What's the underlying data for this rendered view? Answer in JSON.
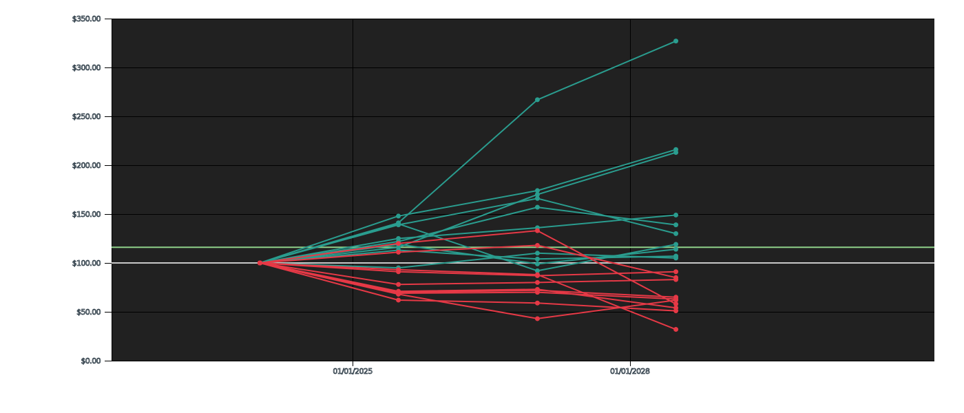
{
  "chart_data": {
    "type": "line",
    "title": "",
    "xlabel": "",
    "ylabel": "",
    "background_color": "#212121",
    "grid": true,
    "x_axis_type": "date",
    "xlim": [
      "2022-05-25",
      "2031-04-18"
    ],
    "ylim": [
      0,
      350
    ],
    "yticks": [
      0,
      50,
      100,
      150,
      200,
      250,
      300,
      350
    ],
    "ytick_labels": [
      "$0.00",
      "$50.00",
      "$100.00",
      "$150.00",
      "$200.00",
      "$250.00",
      "$300.00",
      "$350.00"
    ],
    "xticks": [
      "2025-01-01",
      "2028-01-01"
    ],
    "xtick_labels": [
      "01/01/2025",
      "01/01/2028"
    ],
    "x": [
      "2024-01-01",
      "2025-07-01",
      "2027-01-01",
      "2028-07-01"
    ],
    "reference_lines": [
      {
        "y": 100,
        "color": "#c8c8c8"
      },
      {
        "y": 116,
        "color": "#8fd18a"
      }
    ],
    "colors": {
      "gain": "#2a9d8f",
      "loss": "#e63946"
    },
    "series": [
      {
        "values": [
          100,
          141,
          267,
          327
        ],
        "color": "#2a9d8f"
      },
      {
        "values": [
          100,
          148,
          174,
          216
        ],
        "color": "#2a9d8f"
      },
      {
        "values": [
          100,
          116,
          170,
          213
        ],
        "color": "#2a9d8f"
      },
      {
        "values": [
          100,
          139,
          166,
          130
        ],
        "color": "#2a9d8f"
      },
      {
        "values": [
          100,
          125,
          136,
          149
        ],
        "color": "#2a9d8f"
      },
      {
        "values": [
          100,
          122,
          157,
          139
        ],
        "color": "#2a9d8f"
      },
      {
        "values": [
          100,
          140,
          92,
          119
        ],
        "color": "#2a9d8f"
      },
      {
        "values": [
          100,
          119,
          99,
          114
        ],
        "color": "#2a9d8f"
      },
      {
        "values": [
          100,
          95,
          110,
          105
        ],
        "color": "#2a9d8f"
      },
      {
        "values": [
          100,
          113,
          104,
          107
        ],
        "color": "#2a9d8f"
      },
      {
        "values": [
          100,
          111,
          118,
          85
        ],
        "color": "#e63946"
      },
      {
        "values": [
          100,
          120,
          133,
          58
        ],
        "color": "#e63946"
      },
      {
        "values": [
          100,
          91,
          87,
          91
        ],
        "color": "#e63946"
      },
      {
        "values": [
          100,
          78,
          80,
          83
        ],
        "color": "#e63946"
      },
      {
        "values": [
          100,
          70,
          72,
          65
        ],
        "color": "#e63946"
      },
      {
        "values": [
          100,
          69,
          70,
          63
        ],
        "color": "#e63946"
      },
      {
        "values": [
          100,
          62,
          59,
          51
        ],
        "color": "#e63946"
      },
      {
        "values": [
          100,
          68,
          43,
          62
        ],
        "color": "#e63946"
      },
      {
        "values": [
          100,
          71,
          73,
          54
        ],
        "color": "#e63946"
      },
      {
        "values": [
          100,
          93,
          88,
          32
        ],
        "color": "#e63946"
      }
    ]
  }
}
